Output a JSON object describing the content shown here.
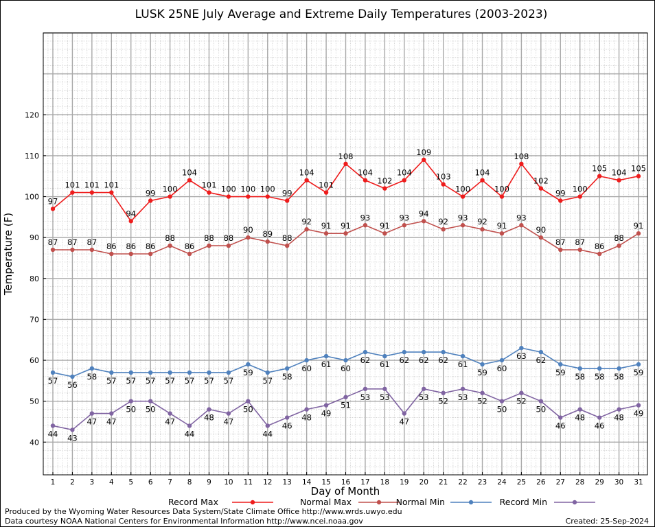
{
  "chart_data": {
    "type": "line",
    "title": "LUSK 25NE July Average and Extreme Daily Temperatures (2003-2023)",
    "xlabel": "Day of Month",
    "ylabel": "Temperature (F)",
    "ylim": [
      32,
      140
    ],
    "yticks": [
      40,
      50,
      60,
      70,
      80,
      90,
      100,
      110,
      120
    ],
    "grid": true,
    "legend_position": "bottom",
    "categories": [
      "1",
      "2",
      "3",
      "4",
      "5",
      "6",
      "7",
      "8",
      "9",
      "10",
      "11",
      "12",
      "13",
      "14",
      "15",
      "16",
      "17",
      "18",
      "19",
      "20",
      "21",
      "22",
      "23",
      "24",
      "25",
      "26",
      "27",
      "28",
      "29",
      "30",
      "31"
    ],
    "series": [
      {
        "name": "Record Max",
        "color": "#ee1c1c",
        "label_position": "above",
        "values": [
          97,
          101,
          101,
          101,
          94,
          99,
          100,
          104,
          101,
          100,
          100,
          100,
          99,
          104,
          101,
          108,
          104,
          102,
          104,
          109,
          103,
          100,
          104,
          100,
          108,
          102,
          99,
          100,
          105,
          104,
          105
        ]
      },
      {
        "name": "Normal Max",
        "color": "#c0504d",
        "label_position": "above",
        "values": [
          87,
          87,
          87,
          86,
          86,
          86,
          88,
          86,
          88,
          88,
          90,
          89,
          88,
          92,
          91,
          91,
          93,
          91,
          93,
          94,
          92,
          93,
          92,
          91,
          93,
          90,
          87,
          87,
          86,
          88,
          91
        ]
      },
      {
        "name": "Normal Min",
        "color": "#4f81bd",
        "label_position": "below",
        "values": [
          57,
          56,
          58,
          57,
          57,
          57,
          57,
          57,
          57,
          57,
          59,
          57,
          58,
          60,
          61,
          60,
          62,
          61,
          62,
          62,
          62,
          61,
          59,
          60,
          63,
          62,
          59,
          58,
          58,
          58,
          59
        ]
      },
      {
        "name": "Record Min",
        "color": "#8064a2",
        "label_position": "below",
        "values": [
          44,
          43,
          47,
          47,
          50,
          50,
          47,
          44,
          48,
          47,
          50,
          44,
          46,
          48,
          49,
          51,
          53,
          53,
          47,
          53,
          52,
          53,
          52,
          50,
          52,
          50,
          46,
          48,
          46,
          48,
          49
        ]
      }
    ]
  },
  "footer": {
    "produced_by": "Produced by the Wyoming Water Resources Data System/State Climate Office http://www.wrds.uwyo.edu",
    "courtesy": "Data courtesy NOAA National Centers for Environmental Information http://www.ncei.noaa.gov",
    "created": "Created:  25-Sep-2024"
  }
}
